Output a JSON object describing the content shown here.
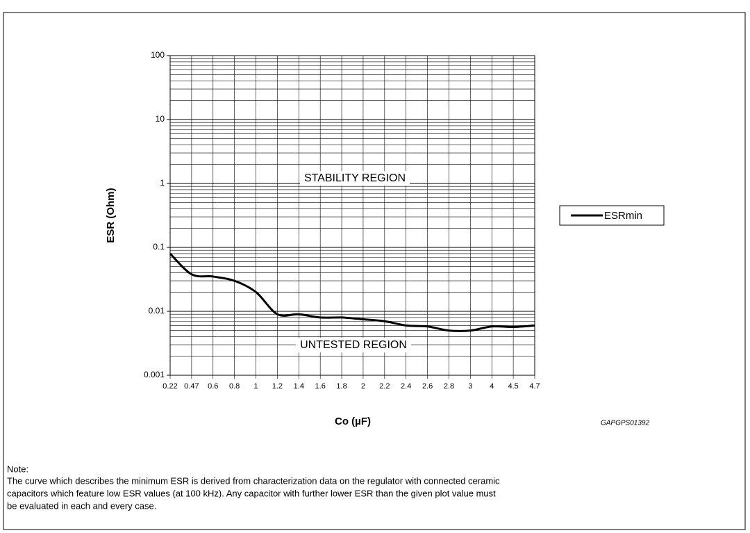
{
  "chart_data": {
    "type": "line",
    "ylabel": "ESR (Ohm)",
    "xlabel": "Co (µF)",
    "categories": [
      "0.22",
      "0.47",
      "0.6",
      "0.8",
      "1",
      "1.2",
      "1.4",
      "1.6",
      "1.8",
      "2",
      "2.2",
      "2.4",
      "2.6",
      "2.8",
      "3",
      "4",
      "4.5",
      "4.7"
    ],
    "series": [
      {
        "name": "ESRmin",
        "color": "#000000",
        "values": [
          0.08,
          0.038,
          0.035,
          0.03,
          0.02,
          0.009,
          0.009,
          0.008,
          0.008,
          0.0075,
          0.007,
          0.006,
          0.0058,
          0.005,
          0.005,
          0.0058,
          0.0057,
          0.006
        ]
      }
    ],
    "ylim": [
      0.001,
      100
    ],
    "yticks": [
      0.001,
      0.01,
      0.1,
      1,
      10,
      100
    ],
    "log_y": true,
    "grid": true,
    "legend": "right",
    "annotations": [
      "STABILITY REGION",
      "UNTESTED REGION"
    ],
    "code": "GAPGPS01392"
  },
  "note": {
    "label": "Note:",
    "lines": [
      "The curve which describes the minimum ESR is derived from characterization data on the regulator with connected ceramic",
      "capacitors which feature low ESR values (at 100 kHz). Any capacitor with further lower ESR than the given plot value must",
      "be evaluated in each and every case."
    ]
  }
}
